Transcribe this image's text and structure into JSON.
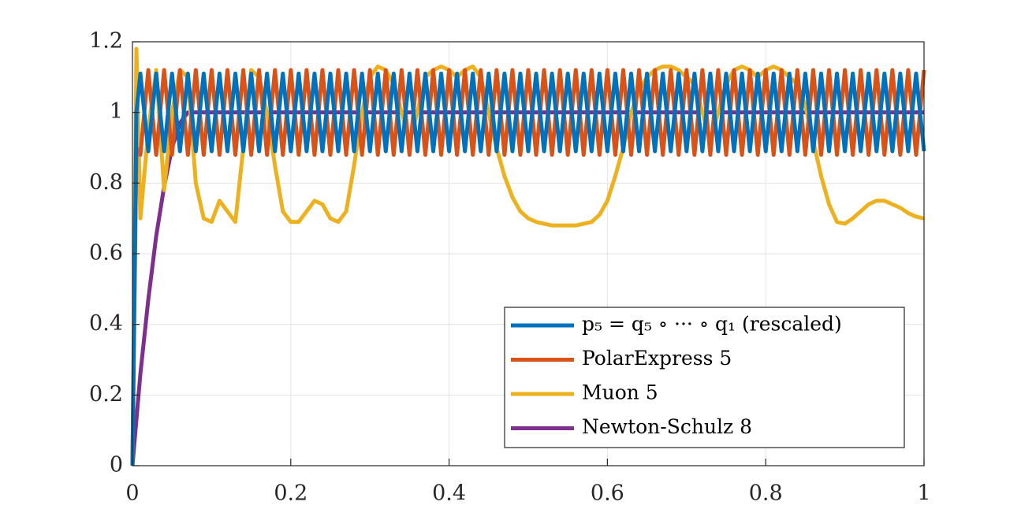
{
  "chart_data": {
    "type": "line",
    "x": [
      0,
      0.005,
      0.01,
      0.02,
      0.03,
      0.04,
      0.05,
      0.06,
      0.07,
      0.08,
      0.09,
      0.1,
      0.11,
      0.12,
      0.13,
      0.14,
      0.15,
      0.16,
      0.17,
      0.18,
      0.19,
      0.2,
      0.21,
      0.22,
      0.23,
      0.24,
      0.25,
      0.26,
      0.27,
      0.28,
      0.29,
      0.3,
      0.31,
      0.32,
      0.33,
      0.34,
      0.35,
      0.36,
      0.37,
      0.38,
      0.39,
      0.4,
      0.41,
      0.42,
      0.43,
      0.44,
      0.45,
      0.46,
      0.47,
      0.48,
      0.49,
      0.5,
      0.51,
      0.52,
      0.53,
      0.54,
      0.55,
      0.56,
      0.57,
      0.58,
      0.59,
      0.6,
      0.61,
      0.62,
      0.63,
      0.64,
      0.65,
      0.66,
      0.67,
      0.68,
      0.69,
      0.7,
      0.71,
      0.72,
      0.73,
      0.74,
      0.75,
      0.76,
      0.77,
      0.78,
      0.79,
      0.8,
      0.81,
      0.82,
      0.83,
      0.84,
      0.85,
      0.86,
      0.87,
      0.88,
      0.89,
      0.9,
      0.91,
      0.92,
      0.93,
      0.94,
      0.95,
      0.96,
      0.97,
      0.98,
      0.99,
      1
    ],
    "series": [
      {
        "name": "p₅ = q₅ ∘ ··· ∘ q₁ (rescaled)",
        "color": "#0072bd",
        "values": [
          0,
          1.0,
          1.11,
          0.89,
          1.11,
          0.89,
          1.11,
          0.89,
          1.11,
          0.89,
          1.11,
          0.89,
          1.11,
          0.89,
          1.11,
          0.89,
          1.11,
          0.89,
          1.11,
          0.89,
          1.11,
          0.89,
          1.11,
          0.89,
          1.11,
          0.89,
          1.11,
          0.89,
          1.11,
          0.89,
          1.11,
          0.89,
          1.11,
          0.89,
          1.11,
          0.89,
          1.11,
          0.89,
          1.11,
          0.89,
          1.11,
          0.89,
          1.11,
          0.89,
          1.11,
          0.89,
          1.11,
          0.89,
          1.11,
          0.89,
          1.11,
          0.89,
          1.11,
          0.89,
          1.11,
          0.89,
          1.11,
          0.89,
          1.11,
          0.89,
          1.11,
          0.89,
          1.11,
          0.89,
          1.11,
          0.89,
          1.11,
          0.89,
          1.11,
          0.89,
          1.11,
          0.89,
          1.11,
          0.89,
          1.11,
          0.89,
          1.11,
          0.89,
          1.11,
          0.89,
          1.11,
          0.89,
          1.11,
          0.89,
          1.11,
          0.89,
          1.11,
          0.89,
          1.11,
          0.89,
          1.11,
          0.89,
          1.11,
          0.89,
          1.11,
          0.89,
          1.11,
          0.89,
          1.11,
          0.89,
          1.11,
          0.89
        ]
      },
      {
        "name": "PolarExpress 5",
        "color": "#d95319",
        "values": [
          0,
          0.9,
          0.88,
          1.12,
          0.88,
          1.12,
          0.88,
          1.12,
          0.88,
          1.12,
          0.88,
          1.12,
          0.88,
          1.12,
          0.88,
          1.12,
          0.88,
          1.12,
          0.88,
          1.12,
          0.88,
          1.12,
          0.88,
          1.12,
          0.88,
          1.12,
          0.88,
          1.12,
          0.88,
          1.12,
          0.88,
          1.12,
          0.88,
          1.12,
          0.88,
          1.12,
          0.88,
          1.12,
          0.88,
          1.12,
          0.88,
          1.12,
          0.88,
          1.12,
          0.88,
          1.12,
          0.88,
          1.12,
          0.88,
          1.12,
          0.88,
          1.12,
          0.88,
          1.12,
          0.88,
          1.12,
          0.88,
          1.12,
          0.88,
          1.12,
          0.88,
          1.12,
          0.88,
          1.12,
          0.88,
          1.12,
          0.88,
          1.12,
          0.88,
          1.12,
          0.88,
          1.12,
          0.88,
          1.12,
          0.88,
          1.12,
          0.88,
          1.12,
          0.88,
          1.12,
          0.88,
          1.12,
          0.88,
          1.12,
          0.88,
          1.12,
          0.88,
          1.12,
          0.88,
          1.12,
          0.88,
          1.12,
          0.88,
          1.12,
          0.88,
          1.12,
          0.88,
          1.12,
          0.88,
          1.12,
          0.88,
          1.12
        ]
      },
      {
        "name": "Muon 5",
        "color": "#edb120",
        "values": [
          0,
          1.18,
          0.7,
          0.95,
          1.12,
          0.78,
          1.0,
          1.12,
          1.1,
          0.8,
          0.7,
          0.69,
          0.75,
          0.72,
          0.69,
          0.9,
          1.12,
          1.1,
          1.0,
          0.85,
          0.72,
          0.69,
          0.69,
          0.72,
          0.75,
          0.74,
          0.7,
          0.69,
          0.72,
          0.85,
          1.0,
          1.1,
          1.13,
          1.12,
          1.08,
          1.0,
          0.92,
          1.0,
          1.1,
          1.12,
          1.13,
          1.12,
          1.1,
          1.12,
          1.13,
          1.1,
          1.0,
          0.9,
          0.82,
          0.76,
          0.72,
          0.7,
          0.69,
          0.685,
          0.68,
          0.68,
          0.68,
          0.68,
          0.685,
          0.69,
          0.71,
          0.75,
          0.82,
          0.9,
          1.0,
          1.06,
          1.1,
          1.12,
          1.13,
          1.13,
          1.12,
          1.1,
          1.08,
          1.0,
          0.92,
          1.0,
          1.08,
          1.12,
          1.13,
          1.12,
          1.1,
          1.12,
          1.13,
          1.12,
          1.1,
          1.08,
          1.02,
          0.92,
          0.82,
          0.74,
          0.69,
          0.685,
          0.7,
          0.72,
          0.74,
          0.75,
          0.75,
          0.74,
          0.73,
          0.715,
          0.705,
          0.7
        ]
      },
      {
        "name": "Newton-Schulz 8",
        "color": "#7e2f8e",
        "values": [
          0,
          0.13,
          0.26,
          0.47,
          0.65,
          0.79,
          0.9,
          0.97,
          1.0,
          1,
          1,
          1,
          1,
          1,
          1,
          1,
          1,
          1,
          1,
          1,
          1,
          1,
          1,
          1,
          1,
          1,
          1,
          1,
          1,
          1,
          1,
          1,
          1,
          1,
          1,
          1,
          1,
          1,
          1,
          1,
          1,
          1,
          1,
          1,
          1,
          1,
          1,
          1,
          1,
          1,
          1,
          1,
          1,
          1,
          1,
          1,
          1,
          1,
          1,
          1,
          1,
          1,
          1,
          1,
          1,
          1,
          1,
          1,
          1,
          1,
          1,
          1,
          1,
          1,
          1,
          1,
          1,
          1,
          1,
          1,
          1,
          1,
          1,
          1,
          1,
          1,
          1,
          1,
          1,
          1,
          1,
          1,
          1,
          1,
          1,
          1,
          1,
          1,
          1,
          1,
          1,
          1
        ]
      }
    ],
    "xlim": [
      0,
      1
    ],
    "xticks": [
      0,
      0.2,
      0.4,
      0.6,
      0.8,
      1
    ],
    "ylim": [
      0,
      1.2
    ],
    "yticks": [
      0,
      0.2,
      0.4,
      0.6,
      0.8,
      1,
      1.2
    ],
    "grid": true,
    "legend": "lower right"
  }
}
